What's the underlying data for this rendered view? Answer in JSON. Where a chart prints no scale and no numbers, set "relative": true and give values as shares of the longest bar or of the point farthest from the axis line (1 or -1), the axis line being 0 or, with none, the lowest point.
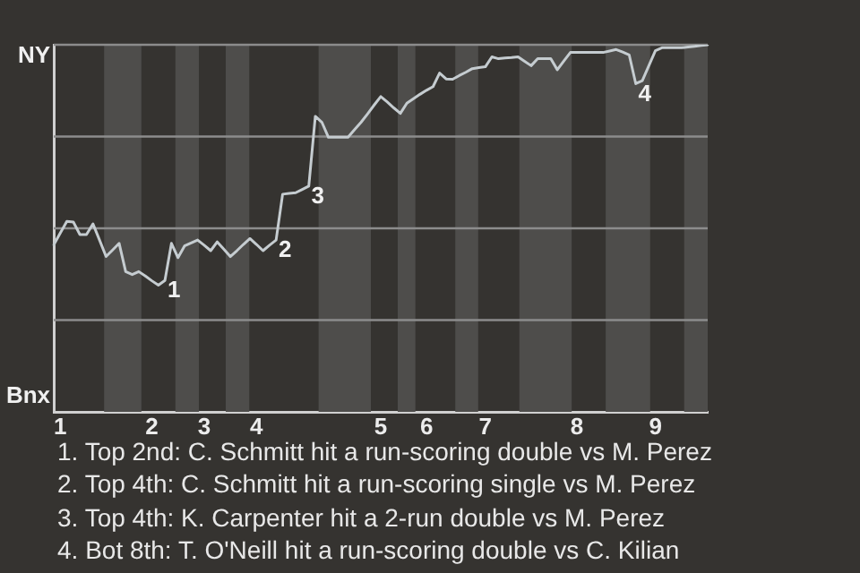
{
  "chart_data": {
    "type": "line",
    "relative": true,
    "categories": [
      null,
      "1",
      null,
      null,
      null,
      null,
      null,
      null,
      null,
      null,
      null,
      null,
      null,
      null,
      null,
      "2",
      null,
      null,
      null,
      null,
      null,
      null,
      null,
      "3",
      null,
      null,
      null,
      null,
      null,
      null,
      null,
      "4",
      null,
      null,
      null,
      null,
      null,
      null,
      null,
      null,
      null,
      null,
      null,
      null,
      null,
      null,
      null,
      null,
      null,
      null,
      "5",
      null,
      null,
      null,
      null,
      null,
      null,
      "6",
      null,
      null,
      null,
      null,
      null,
      null,
      null,
      null,
      "7",
      null,
      null,
      null,
      null,
      null,
      null,
      null,
      null,
      null,
      null,
      null,
      null,
      null,
      "8",
      null,
      null,
      null,
      null,
      null,
      null,
      null,
      null,
      null,
      null,
      null,
      "9",
      null,
      null,
      null,
      null,
      null,
      null,
      null,
      null
    ],
    "series": [
      {
        "color": "#c5ccd0",
        "values": [
          0.455,
          0.487,
          0.519,
          0.517,
          0.483,
          0.483,
          0.512,
          0.468,
          0.423,
          0.441,
          0.459,
          0.382,
          0.374,
          0.382,
          0.37,
          0.357,
          0.345,
          0.358,
          0.459,
          0.42,
          0.452,
          0.46,
          0.468,
          0.454,
          0.439,
          0.463,
          0.443,
          0.423,
          0.439,
          0.456,
          0.472,
          0.456,
          0.439,
          0.454,
          0.468,
          0.593,
          0.595,
          0.597,
          0.606,
          0.615,
          0.805,
          0.789,
          0.748,
          0.748,
          0.748,
          0.748,
          0.769,
          0.789,
          0.812,
          0.836,
          0.859,
          0.844,
          0.828,
          0.813,
          0.841,
          0.853,
          0.865,
          0.876,
          0.886,
          0.923,
          0.907,
          0.906,
          0.916,
          0.925,
          0.935,
          0.938,
          0.94,
          0.967,
          0.962,
          0.964,
          0.965,
          0.967,
          0.955,
          0.943,
          0.962,
          0.962,
          0.962,
          0.932,
          0.956,
          0.979,
          0.979,
          0.979,
          0.979,
          0.979,
          0.979,
          0.983,
          0.987,
          0.98,
          0.972,
          0.894,
          0.902,
          0.943,
          0.984,
          0.992,
          0.992,
          0.992,
          0.992,
          0.994,
          0.996,
          0.998,
          1
        ]
      }
    ],
    "ref_lines": [
      {
        "axis": "y",
        "value": 0.25,
        "color": "#8c8c8c"
      },
      {
        "axis": "y",
        "value": 0.5,
        "color": "#8c8c8c"
      },
      {
        "axis": "y",
        "value": 0.75,
        "color": "#8c8c8c"
      },
      {
        "axis": "y",
        "value": 1,
        "color": "#8c8c8c"
      }
    ],
    "annotations": [
      "NY",
      "Bnx",
      {
        "text": "1",
        "y": 0.358
      },
      {
        "text": "2",
        "y": 0.468
      },
      {
        "text": "3",
        "y": 0.615
      },
      {
        "text": "4",
        "y": 0.894
      },
      "1. Top 2nd: C. Schmitt hit a run-scoring double vs M. Perez",
      "2. Top 4th: C. Schmitt hit a run-scoring single vs M. Perez",
      "3. Top 4th: K. Carpenter hit a 2-run double vs M. Perez",
      "4. Bot 8th: T. O'Neill hit a run-scoring double vs C. Kilian"
    ]
  }
}
